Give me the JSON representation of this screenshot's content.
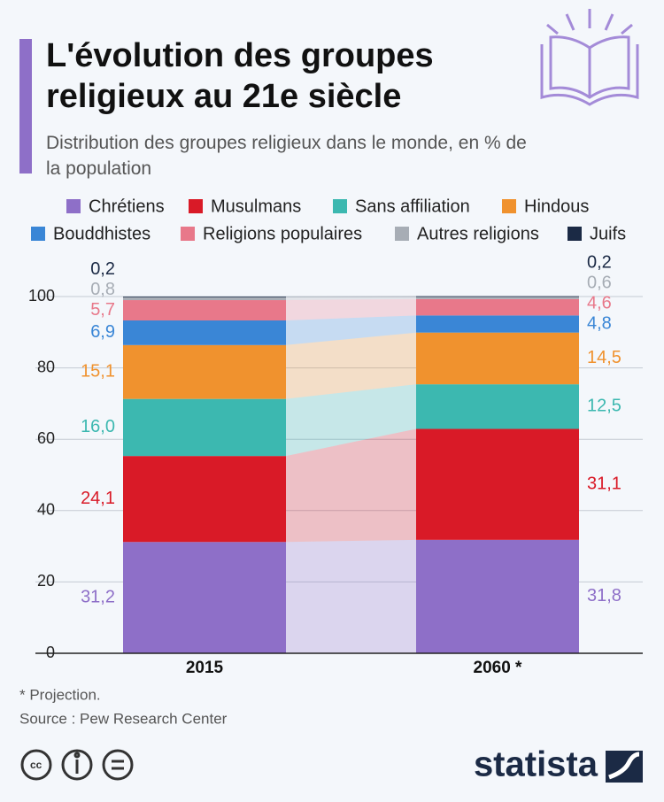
{
  "chart_data": {
    "type": "stacked-bar",
    "title": "L'évolution des groupes religieux au 21e siècle",
    "subtitle": "Distribution des groupes religieux dans le monde, en % de la population",
    "categories": [
      "2015",
      "2060 *"
    ],
    "series": [
      {
        "name": "Chrétiens",
        "color": "#8e6fc8",
        "values": [
          31.2,
          31.8
        ],
        "value_labels": [
          "31,2",
          "31,8"
        ]
      },
      {
        "name": "Musulmans",
        "color": "#d91a27",
        "values": [
          24.1,
          31.1
        ],
        "value_labels": [
          "24,1",
          "31,1"
        ]
      },
      {
        "name": "Sans affiliation",
        "color": "#3cb8b0",
        "values": [
          16.0,
          12.5
        ],
        "value_labels": [
          "16,0",
          "12,5"
        ]
      },
      {
        "name": "Hindous",
        "color": "#f0922e",
        "values": [
          15.1,
          14.5
        ],
        "value_labels": [
          "15,1",
          "14,5"
        ]
      },
      {
        "name": "Bouddhistes",
        "color": "#3a86d6",
        "values": [
          6.9,
          4.8
        ],
        "value_labels": [
          "6,9",
          "4,8"
        ]
      },
      {
        "name": "Religions populaires",
        "color": "#e8788a",
        "values": [
          5.7,
          4.6
        ],
        "value_labels": [
          "5,7",
          "4,6"
        ]
      },
      {
        "name": "Autres religions",
        "color": "#a7adb5",
        "values": [
          0.8,
          0.6
        ],
        "value_labels": [
          "0,8",
          "0,6"
        ]
      },
      {
        "name": "Juifs",
        "color": "#1b2a45",
        "values": [
          0.2,
          0.2
        ],
        "value_labels": [
          "0,2",
          "0,2"
        ]
      }
    ],
    "ylim": [
      0,
      100
    ],
    "yticks": [
      0,
      20,
      40,
      60,
      80,
      100
    ],
    "grid": true,
    "footnote": "* Projection.",
    "source": "Source : Pew Research Center",
    "brand": "statista"
  }
}
